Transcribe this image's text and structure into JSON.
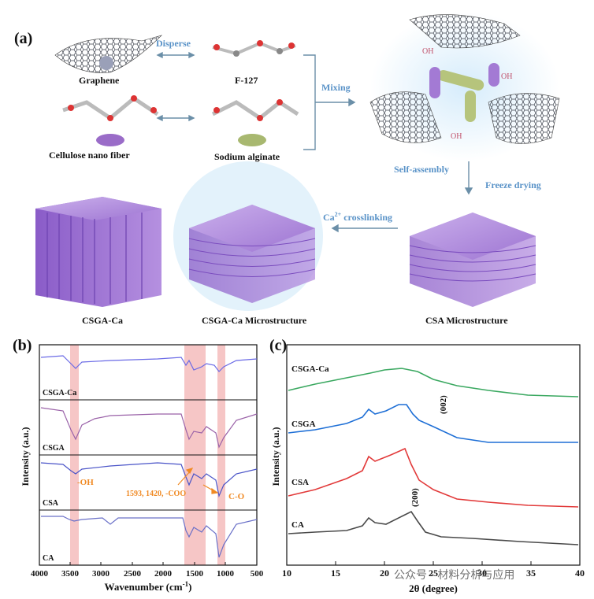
{
  "panel_a": {
    "letter": "(a)",
    "graphene": "Graphene",
    "f127": "F-127",
    "cnf": "Cellulose nano fiber",
    "alginate": "Sodium alginate",
    "disperse": "Disperse",
    "mixing": "Mixing",
    "self_assembly": "Self-assembly",
    "freeze_drying": "Freeze drying",
    "ca_crosslinking_prefix": "Ca",
    "ca_crosslinking_sup": "2+",
    "ca_crosslinking_suffix": " crosslinking",
    "csga_ca": "CSGA-Ca",
    "csga_ca_micro": "CSGA-Ca Microstructure",
    "csa_micro": "CSA Microstructure",
    "oh": "OH",
    "colors": {
      "purple": "#a57bd6",
      "blue_text": "#5a93c8",
      "graphene": "#555a66"
    }
  },
  "panel_b": {
    "letter": "(b)",
    "ylabel": "Intensity (a.u.)",
    "xlabel_main": "Wavenumber (cm",
    "xlabel_sup": "-1",
    "xlabel_end": ")",
    "x_ticks": [
      "4000",
      "3500",
      "3000",
      "2500",
      "2000",
      "1500",
      "1000",
      "500"
    ],
    "traces": [
      "CSGA-Ca",
      "CSGA",
      "CSA",
      "CA"
    ],
    "annot_oh": "-OH",
    "annot_coo": "1593, 1420, -COO",
    "annot_co": "C-O",
    "colors": {
      "csga_ca": "#6a6ae6",
      "csga": "#9a62a8",
      "csa": "#4a54c8",
      "ca": "#6a70c8",
      "band": "#f6c6c6",
      "annot": "#f08a24"
    }
  },
  "panel_c": {
    "letter": "(c)",
    "ylabel": "Intensity (a.u.)",
    "xlabel": "2θ (degree)",
    "x_ticks": [
      "10",
      "15",
      "20",
      "25",
      "30",
      "35",
      "40"
    ],
    "traces": [
      "CSGA-Ca",
      "CSGA",
      "CSA",
      "CA"
    ],
    "peak_002": "(002)",
    "peak_200": "(200)",
    "colors": {
      "csga_ca": "#3aa860",
      "csga": "#1e6fd6",
      "csa": "#e23a3a",
      "ca": "#4a4a4a"
    }
  },
  "watermark": "公众号 · 材料分析与应用"
}
